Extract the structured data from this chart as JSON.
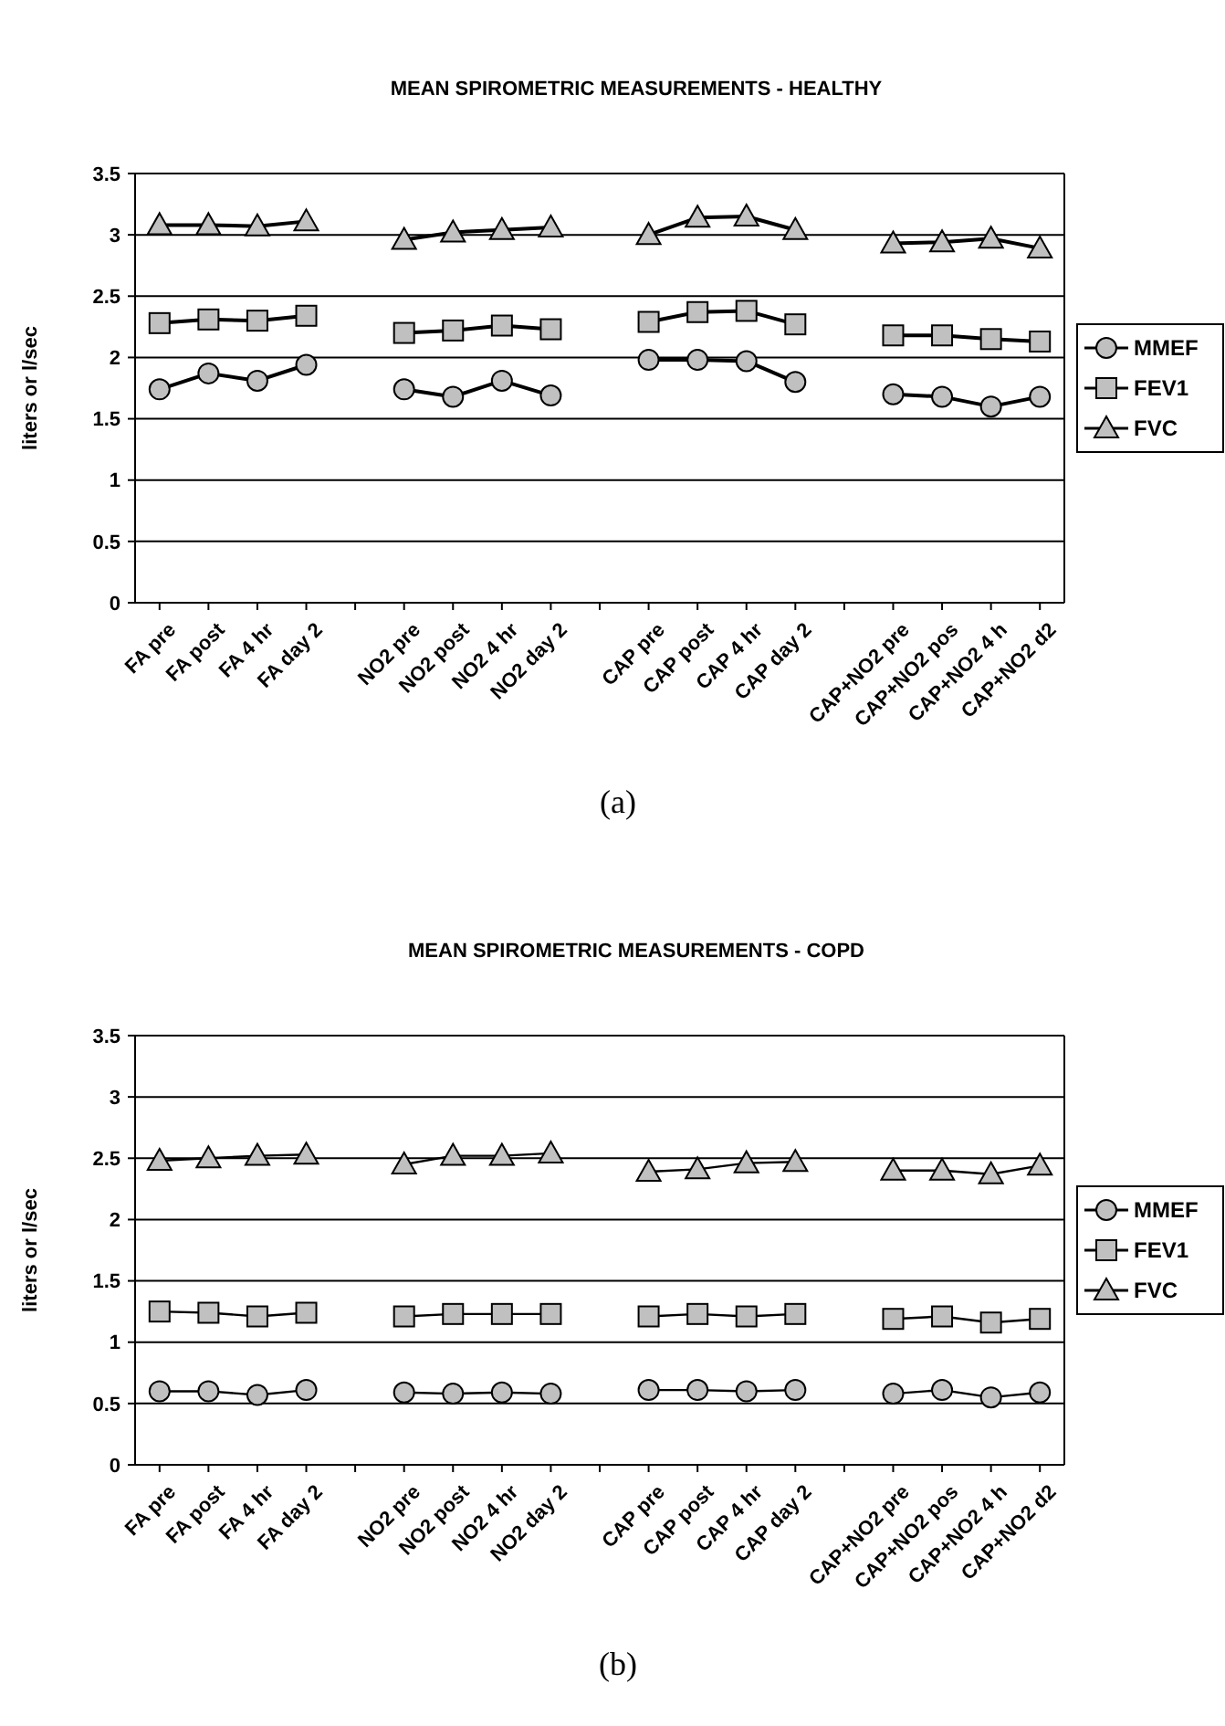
{
  "chart_data": [
    {
      "type": "line",
      "title": "MEAN SPIROMETRIC MEASUREMENTS - HEALTHY",
      "ylabel": "liters or l/sec",
      "annotations": [
        "(a)"
      ],
      "categories": [
        "FA pre",
        "FA post",
        "FA 4 hr",
        "FA day 2",
        null,
        "NO2 pre",
        "NO2 post",
        "NO2 4 hr",
        "NO2 day 2",
        null,
        "CAP pre",
        "CAP post",
        "CAP 4 hr",
        "CAP day 2",
        null,
        "CAP+NO2 pre",
        "CAP+NO2 pos",
        "CAP+NO2 4 h",
        "CAP+NO2 d2"
      ],
      "ylim": [
        0,
        3.5
      ],
      "yticks": [
        0,
        0.5,
        1,
        1.5,
        2,
        2.5,
        3,
        3.5
      ],
      "grid": "y",
      "legend": "right",
      "line_style": "solid",
      "series": [
        {
          "name": "MMEF",
          "color": "#c0c0c0",
          "marker": "circle",
          "values": [
            1.74,
            1.87,
            1.81,
            1.94,
            null,
            1.74,
            1.68,
            1.81,
            1.69,
            null,
            1.98,
            1.98,
            1.97,
            1.8,
            null,
            1.7,
            1.68,
            1.6,
            1.68
          ]
        },
        {
          "name": "FEV1",
          "color": "#c0c0c0",
          "marker": "square",
          "values": [
            2.28,
            2.31,
            2.3,
            2.34,
            null,
            2.2,
            2.22,
            2.26,
            2.23,
            null,
            2.29,
            2.37,
            2.38,
            2.27,
            null,
            2.18,
            2.18,
            2.15,
            2.13
          ]
        },
        {
          "name": "FVC",
          "color": "#c0c0c0",
          "marker": "triangle",
          "values": [
            3.08,
            3.08,
            3.07,
            3.11,
            null,
            2.96,
            3.02,
            3.04,
            3.06,
            null,
            3.0,
            3.14,
            3.15,
            3.04,
            null,
            2.93,
            2.94,
            2.97,
            2.89
          ]
        }
      ]
    },
    {
      "type": "line",
      "title": "MEAN SPIROMETRIC MEASUREMENTS - COPD",
      "ylabel": "liters or l/sec",
      "annotations": [
        "(b)"
      ],
      "categories": [
        "FA pre",
        "FA post",
        "FA 4 hr",
        "FA day 2",
        null,
        "NO2 pre",
        "NO2 post",
        "NO2 4 hr",
        "NO2 day 2",
        null,
        "CAP pre",
        "CAP post",
        "CAP 4 hr",
        "CAP day 2",
        null,
        "CAP+NO2 pre",
        "CAP+NO2 pos",
        "CAP+NO2 4 h",
        "CAP+NO2 d2"
      ],
      "ylim": [
        0,
        3.5
      ],
      "yticks": [
        0,
        0.5,
        1,
        1.5,
        2,
        2.5,
        3,
        3.5
      ],
      "grid": "y",
      "legend": "right",
      "line_style": "solid",
      "series": [
        {
          "name": "MMEF",
          "color": "#c0c0c0",
          "marker": "circle",
          "values": [
            0.6,
            0.6,
            0.57,
            0.61,
            null,
            0.59,
            0.58,
            0.59,
            0.58,
            null,
            0.61,
            0.61,
            0.6,
            0.61,
            null,
            0.58,
            0.61,
            0.55,
            0.59
          ]
        },
        {
          "name": "FEV1",
          "color": "#c0c0c0",
          "marker": "square",
          "values": [
            1.25,
            1.24,
            1.21,
            1.24,
            null,
            1.21,
            1.23,
            1.23,
            1.23,
            null,
            1.21,
            1.23,
            1.21,
            1.23,
            null,
            1.19,
            1.21,
            1.16,
            1.19
          ]
        },
        {
          "name": "FVC",
          "color": "#c0c0c0",
          "marker": "triangle",
          "values": [
            2.48,
            2.5,
            2.52,
            2.53,
            null,
            2.45,
            2.52,
            2.52,
            2.54,
            null,
            2.39,
            2.41,
            2.46,
            2.47,
            null,
            2.4,
            2.4,
            2.37,
            2.44
          ]
        }
      ]
    }
  ]
}
